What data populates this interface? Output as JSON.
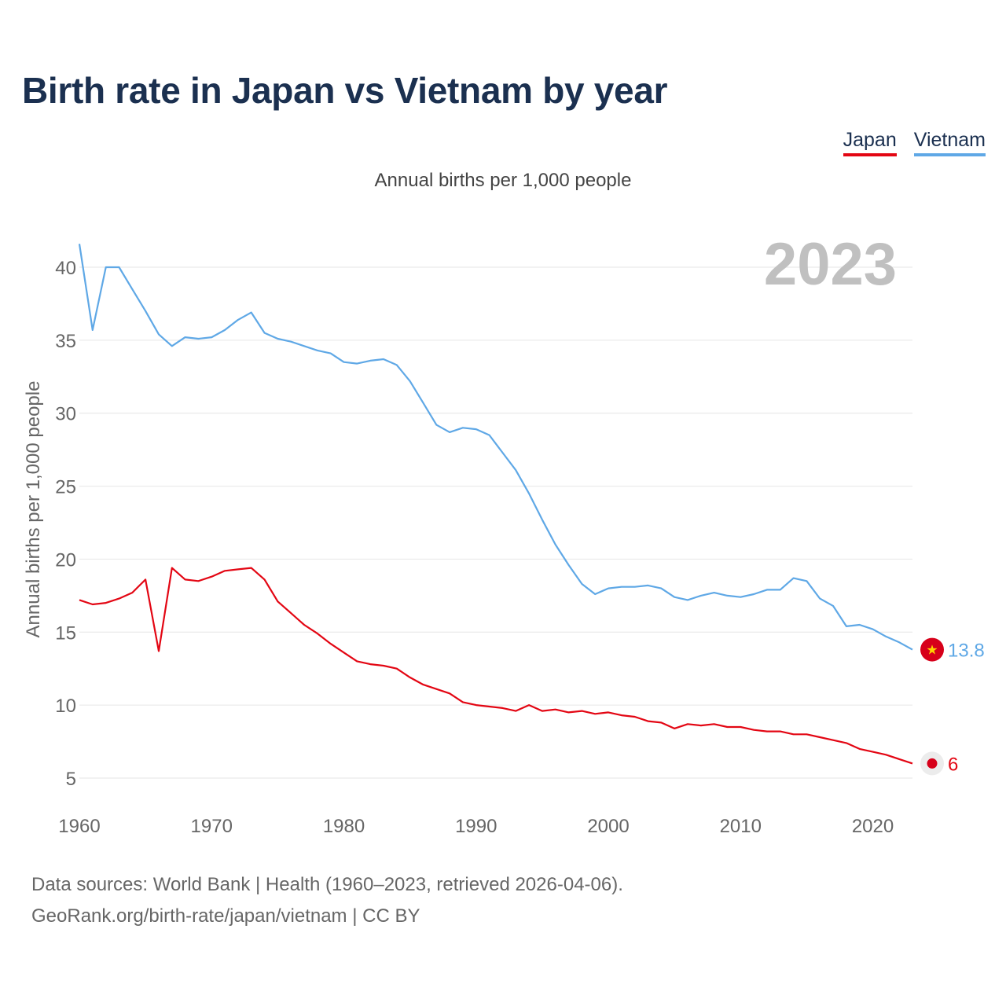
{
  "title": "Birth rate in Japan vs Vietnam by year",
  "subtitle": "Annual births per 1,000 people",
  "legend": {
    "japan": "Japan",
    "vietnam": "Vietnam"
  },
  "colors": {
    "japan": "#e30613",
    "vietnam": "#5fa8e6",
    "title": "#1b3050",
    "year": "#c0c0c0",
    "grid": "#e6e6e6"
  },
  "chart_data": {
    "type": "line",
    "title": "Birth rate in Japan vs Vietnam by year",
    "xlabel": "",
    "ylabel": "Annual births per 1,000 people",
    "xlim": [
      1960,
      2023
    ],
    "ylim": [
      4,
      42
    ],
    "xticks": [
      1960,
      1970,
      1980,
      1990,
      2000,
      2010,
      2020
    ],
    "yticks": [
      5,
      10,
      15,
      20,
      25,
      30,
      35,
      40
    ],
    "grid": true,
    "highlight_year": "2023",
    "x": [
      1960,
      1961,
      1962,
      1963,
      1964,
      1965,
      1966,
      1967,
      1968,
      1969,
      1970,
      1971,
      1972,
      1973,
      1974,
      1975,
      1976,
      1977,
      1978,
      1979,
      1980,
      1981,
      1982,
      1983,
      1984,
      1985,
      1986,
      1987,
      1988,
      1989,
      1990,
      1991,
      1992,
      1993,
      1994,
      1995,
      1996,
      1997,
      1998,
      1999,
      2000,
      2001,
      2002,
      2003,
      2004,
      2005,
      2006,
      2007,
      2008,
      2009,
      2010,
      2011,
      2012,
      2013,
      2014,
      2015,
      2016,
      2017,
      2018,
      2019,
      2020,
      2021,
      2022,
      2023
    ],
    "series": [
      {
        "name": "Japan",
        "color": "#e30613",
        "end_label": "6",
        "values": [
          17.2,
          16.9,
          17.0,
          17.3,
          17.7,
          18.6,
          13.7,
          19.4,
          18.6,
          18.5,
          18.8,
          19.2,
          19.3,
          19.4,
          18.6,
          17.1,
          16.3,
          15.5,
          14.9,
          14.2,
          13.6,
          13.0,
          12.8,
          12.7,
          12.5,
          11.9,
          11.4,
          11.1,
          10.8,
          10.2,
          10.0,
          9.9,
          9.8,
          9.6,
          10.0,
          9.6,
          9.7,
          9.5,
          9.6,
          9.4,
          9.5,
          9.3,
          9.2,
          8.9,
          8.8,
          8.4,
          8.7,
          8.6,
          8.7,
          8.5,
          8.5,
          8.3,
          8.2,
          8.2,
          8.0,
          8.0,
          7.8,
          7.6,
          7.4,
          7.0,
          6.8,
          6.6,
          6.3,
          6.0
        ]
      },
      {
        "name": "Vietnam",
        "color": "#5fa8e6",
        "end_label": "13.8",
        "values": [
          41.6,
          35.7,
          40.0,
          40.0,
          38.5,
          37.0,
          35.4,
          34.6,
          35.2,
          35.1,
          35.2,
          35.7,
          36.4,
          36.9,
          35.5,
          35.1,
          34.9,
          34.6,
          34.3,
          34.1,
          33.5,
          33.4,
          33.6,
          33.7,
          33.3,
          32.2,
          30.7,
          29.2,
          28.7,
          29.0,
          28.9,
          28.5,
          27.3,
          26.1,
          24.5,
          22.7,
          21.0,
          19.6,
          18.3,
          17.6,
          18.0,
          18.1,
          18.1,
          18.2,
          18.0,
          17.4,
          17.2,
          17.5,
          17.7,
          17.5,
          17.4,
          17.6,
          17.9,
          17.9,
          18.7,
          18.5,
          17.3,
          16.8,
          15.4,
          15.5,
          15.2,
          14.7,
          14.3,
          13.8
        ]
      }
    ]
  },
  "footer": {
    "line1": "Data sources: World Bank | Health (1960–2023, retrieved 2026-04-06).",
    "line2": "GeoRank.org/birth-rate/japan/vietnam | CC BY"
  }
}
